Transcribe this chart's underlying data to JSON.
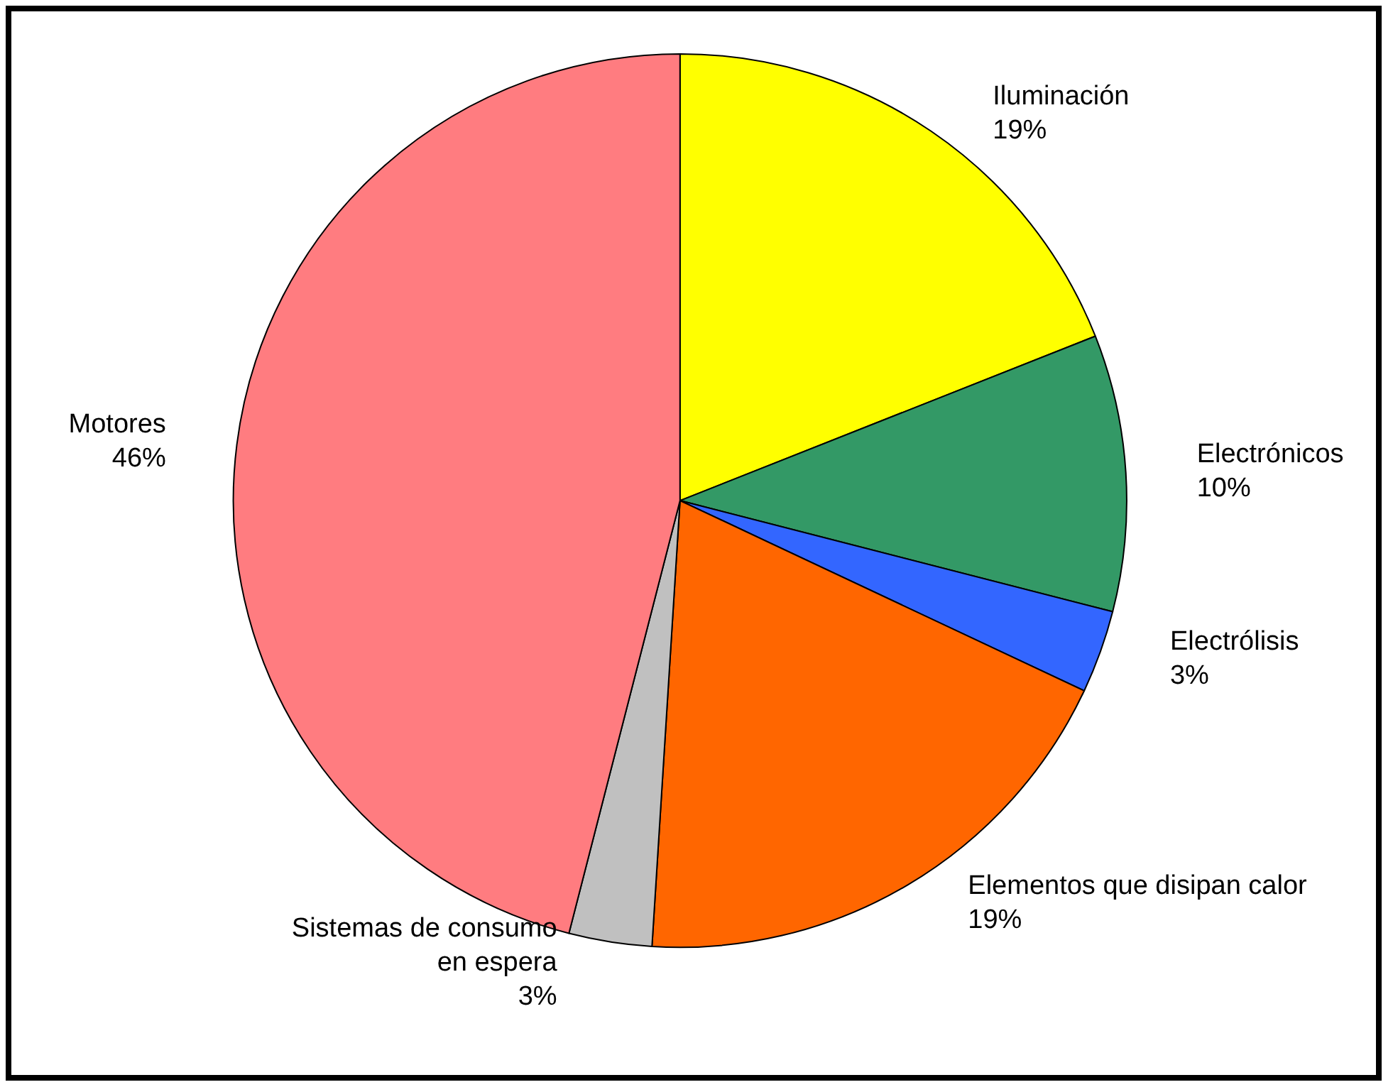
{
  "chart_data": {
    "type": "pie",
    "categories": [
      "Iluminación",
      "Electrónicos",
      "Electrólisis",
      "Elementos que disipan calor",
      "Sistemas de consumo\nen espera",
      "Motores"
    ],
    "values": [
      19,
      10,
      3,
      19,
      3,
      46
    ],
    "value_labels": [
      "19%",
      "10%",
      "3%",
      "19%",
      "3%",
      "46%"
    ],
    "colors": [
      "#ffff00",
      "#339966",
      "#3366ff",
      "#ff6600",
      "#c0c0c0",
      "#ff7c80"
    ],
    "legend": false
  }
}
